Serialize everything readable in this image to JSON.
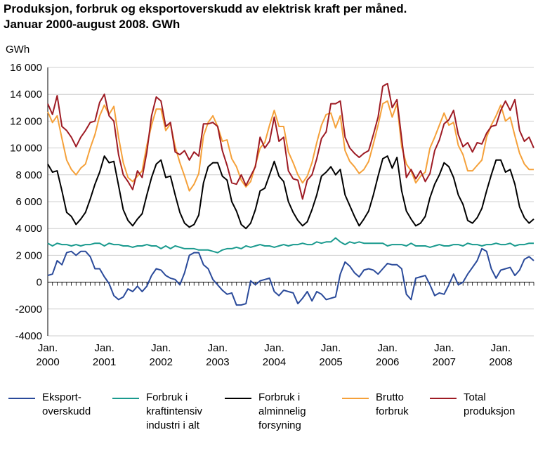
{
  "chart_data": {
    "type": "line",
    "title": "Produksjon, forbruk og eksportoverskudd av elektrisk kraft per måned.",
    "subtitle": "Januar 2000-august 2008. GWh",
    "ylabel": "GWh",
    "xlabel": "",
    "ylim": [
      -4000,
      16000
    ],
    "y_ticks": [
      16000,
      14000,
      12000,
      10000,
      8000,
      6000,
      4000,
      2000,
      0,
      -2000,
      -4000
    ],
    "y_tick_labels": [
      "16 000",
      "14 000",
      "12 000",
      "10 000",
      "8 000",
      "6 000",
      "4 000",
      "2 000",
      "0",
      "-2000",
      "-4000"
    ],
    "x_tick_labels": [
      {
        "line1": "Jan.",
        "line2": "2000"
      },
      {
        "line1": "Jan.",
        "line2": "2001"
      },
      {
        "line1": "Jan.",
        "line2": "2002"
      },
      {
        "line1": "Jan.",
        "line2": "2003"
      },
      {
        "line1": "Jan.",
        "line2": "2004"
      },
      {
        "line1": "Jan.",
        "line2": "2005"
      },
      {
        "line1": "Jan.",
        "line2": "2006"
      },
      {
        "line1": "Jan.",
        "line2": "2007"
      },
      {
        "line1": "Jan.",
        "line2": "2008"
      }
    ],
    "x_start": "2000-01",
    "n_months": 104,
    "grid": true,
    "legend_position": "bottom",
    "series": [
      {
        "name": "Eksport-\noverskudd",
        "color": "#2a4a9a",
        "values": [
          500,
          600,
          1600,
          1300,
          2200,
          2300,
          2000,
          2300,
          2300,
          1900,
          1000,
          1000,
          400,
          -100,
          -1000,
          -1300,
          -1100,
          -500,
          -700,
          -300,
          -700,
          -300,
          500,
          1000,
          900,
          500,
          300,
          200,
          -200,
          700,
          2000,
          2200,
          2200,
          1300,
          1000,
          200,
          -200,
          -600,
          -900,
          -800,
          -1700,
          -1700,
          -1600,
          100,
          -200,
          100,
          200,
          300,
          -700,
          -1000,
          -600,
          -700,
          -800,
          -1600,
          -1200,
          -700,
          -1400,
          -700,
          -900,
          -1300,
          -1200,
          -1100,
          600,
          1500,
          1200,
          700,
          400,
          900,
          1000,
          900,
          600,
          1000,
          1400,
          1300,
          1300,
          1000,
          -900,
          -1300,
          300,
          400,
          500,
          -200,
          -1000,
          -800,
          -900,
          -200,
          600,
          -200,
          0,
          600,
          1100,
          1600,
          2500,
          2300,
          1000,
          300,
          900,
          1000,
          1100,
          500,
          900,
          1700,
          1900,
          1600
        ]
      },
      {
        "name": "Forbruk i\nkraftintensiv\nindustri i alt",
        "color": "#1a9a8e",
        "values": [
          2900,
          2700,
          2900,
          2800,
          2800,
          2700,
          2800,
          2700,
          2800,
          2800,
          2900,
          2900,
          2700,
          2900,
          2800,
          2800,
          2700,
          2700,
          2600,
          2700,
          2700,
          2800,
          2700,
          2700,
          2500,
          2700,
          2500,
          2700,
          2600,
          2500,
          2500,
          2500,
          2400,
          2400,
          2400,
          2300,
          2200,
          2400,
          2500,
          2500,
          2600,
          2500,
          2700,
          2600,
          2700,
          2800,
          2700,
          2700,
          2600,
          2700,
          2800,
          2700,
          2800,
          2800,
          2900,
          2800,
          2800,
          3000,
          2900,
          3000,
          3000,
          3300,
          3000,
          2800,
          3000,
          2900,
          3000,
          2900,
          2900,
          2900,
          2900,
          2900,
          2700,
          2800,
          2800,
          2800,
          2700,
          2900,
          2700,
          2700,
          2700,
          2600,
          2700,
          2800,
          2700,
          2700,
          2800,
          2800,
          2700,
          2900,
          2800,
          2800,
          2700,
          2800,
          2800,
          2900,
          2800,
          2800,
          2900,
          2700,
          2800,
          2800,
          2900,
          2900
        ]
      },
      {
        "name": "Forbruk i\nalminnelig\nforsyning",
        "color": "#000000",
        "values": [
          8800,
          8200,
          8300,
          6800,
          5200,
          4900,
          4300,
          4700,
          5200,
          6200,
          7300,
          8200,
          9400,
          8900,
          9000,
          7200,
          5400,
          4600,
          4200,
          4700,
          5100,
          6500,
          7800,
          8800,
          9100,
          7800,
          7900,
          6500,
          5200,
          4400,
          4100,
          4300,
          5000,
          7400,
          8600,
          8900,
          8900,
          7900,
          7600,
          6000,
          5300,
          4300,
          4000,
          4400,
          5400,
          6800,
          7000,
          8000,
          9000,
          7900,
          7500,
          6000,
          5200,
          4600,
          4200,
          4500,
          5400,
          6500,
          7900,
          8200,
          8600,
          8000,
          8400,
          6500,
          5700,
          4900,
          4200,
          4700,
          5300,
          6500,
          7900,
          9200,
          9400,
          8500,
          9300,
          6800,
          5300,
          4700,
          4200,
          4400,
          4900,
          6300,
          7300,
          8000,
          8900,
          8600,
          7800,
          6500,
          5800,
          4600,
          4400,
          4800,
          5500,
          6800,
          8000,
          9100,
          9100,
          8200,
          8400,
          7300,
          5600,
          4800,
          4400,
          4700
        ]
      },
      {
        "name": "Brutto\nforbruk",
        "color": "#f5a13a",
        "values": [
          12700,
          11900,
          12400,
          10700,
          9100,
          8400,
          8000,
          8500,
          8800,
          10000,
          11000,
          12400,
          13200,
          12500,
          13100,
          10800,
          8900,
          7800,
          7500,
          7900,
          8300,
          10200,
          11700,
          12900,
          12900,
          11300,
          11800,
          10100,
          8900,
          7900,
          6800,
          7300,
          8100,
          10900,
          11900,
          12400,
          11600,
          10500,
          10600,
          9200,
          8600,
          7600,
          7100,
          7500,
          8700,
          10000,
          10400,
          11700,
          12800,
          11600,
          11600,
          9700,
          8900,
          8000,
          7400,
          7900,
          8900,
          10400,
          11700,
          12500,
          12600,
          11500,
          12400,
          9800,
          9000,
          8600,
          8100,
          8400,
          9000,
          10300,
          11700,
          13300,
          13500,
          12300,
          13300,
          10100,
          8800,
          8300,
          7400,
          7900,
          8200,
          10000,
          10800,
          11700,
          12600,
          11700,
          11900,
          10200,
          9500,
          8300,
          8300,
          8700,
          9100,
          10800,
          11700,
          12400,
          13200,
          12000,
          12300,
          10900,
          9600,
          8800,
          8400,
          8400
        ]
      },
      {
        "name": "Total\nproduksjon",
        "color": "#9e1b24",
        "values": [
          13300,
          12500,
          13900,
          11600,
          11300,
          10800,
          10100,
          10800,
          11300,
          11900,
          12000,
          13400,
          14000,
          12400,
          12000,
          9500,
          8000,
          7500,
          6900,
          8300,
          7800,
          9700,
          12400,
          13800,
          13500,
          11600,
          11900,
          9700,
          9500,
          9800,
          9100,
          9700,
          9400,
          11800,
          11800,
          11900,
          11600,
          9800,
          8700,
          7400,
          7300,
          8000,
          7200,
          7900,
          8600,
          10800,
          10000,
          10500,
          12300,
          10500,
          10800,
          8300,
          7700,
          7600,
          6200,
          7600,
          8000,
          9200,
          10700,
          11200,
          13300,
          13300,
          13500,
          10800,
          10000,
          9600,
          9300,
          9600,
          9800,
          11000,
          12300,
          14600,
          14800,
          13000,
          13600,
          10700,
          7800,
          8400,
          7700,
          8300,
          7500,
          8100,
          9800,
          10600,
          11800,
          12100,
          12800,
          11000,
          10100,
          10400,
          9700,
          10400,
          10300,
          11100,
          11600,
          11700,
          12800,
          13500,
          12800,
          13600,
          11300,
          10500,
          10800,
          10000
        ]
      }
    ]
  }
}
